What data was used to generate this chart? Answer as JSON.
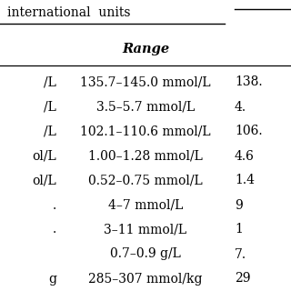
{
  "rows": [
    [
      "/L",
      "135.7–145.0 mmol/L",
      "138."
    ],
    [
      "/L",
      "3.5–5.7 mmol/L",
      "4."
    ],
    [
      "/L",
      "102.1–110.6 mmol/L",
      "106."
    ],
    [
      "ol/L",
      "1.00–1.28 mmol/L",
      "4.6"
    ],
    [
      "ol/L",
      "0.52–0.75 mmol/L",
      "1.4"
    ],
    [
      ".",
      "4–7 mmol/L",
      "9"
    ],
    [
      ".",
      "3–11 mmol/L",
      "1"
    ],
    [
      "",
      "0.7–0.9 g/L",
      "7."
    ],
    [
      "g",
      "285–307 mmol/kg",
      "29"
    ]
  ],
  "top_text": "international  units",
  "range_header": "Range",
  "background_color": "#ffffff",
  "line_color": "#000000",
  "text_color": "#000000",
  "font_size": 10.0
}
